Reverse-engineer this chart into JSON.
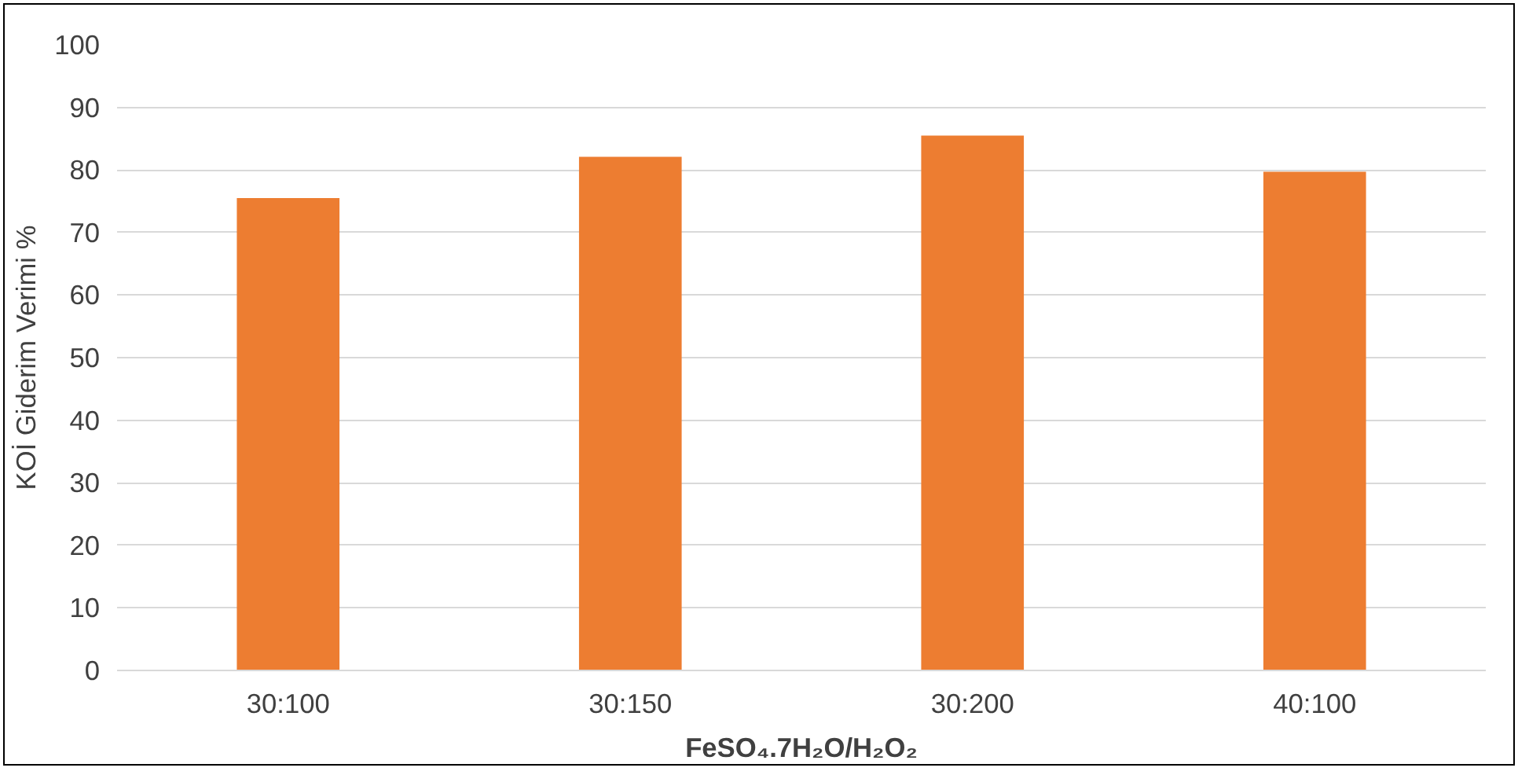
{
  "chart_data": {
    "type": "bar",
    "xlabel": "FeSO₄.7H₂O/H₂O₂",
    "ylabel": "KOİ Giderim Verimi %",
    "categories": [
      "30:100",
      "30:150",
      "30:200",
      "40:100"
    ],
    "values": [
      75.5,
      82.1,
      85.5,
      79.7
    ],
    "color": "#ed7d31",
    "ylim": [
      0,
      100
    ],
    "yticks": [
      0,
      10,
      20,
      30,
      40,
      50,
      60,
      70,
      80,
      90,
      100
    ],
    "grid": "y"
  }
}
